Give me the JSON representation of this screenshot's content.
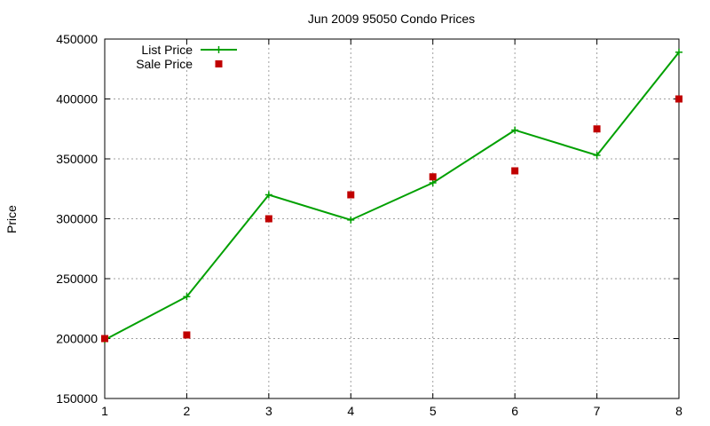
{
  "chart_data": {
    "type": "line",
    "title": "Jun 2009 95050 Condo Prices",
    "xlabel": "",
    "ylabel": "Price",
    "x": [
      1,
      2,
      3,
      4,
      5,
      6,
      7,
      8
    ],
    "xlim": [
      1,
      8
    ],
    "ylim": [
      150000,
      450000
    ],
    "xticks": [
      1,
      2,
      3,
      4,
      5,
      6,
      7,
      8
    ],
    "yticks": [
      150000,
      200000,
      250000,
      300000,
      350000,
      400000,
      450000
    ],
    "grid": true,
    "legend_position": "top-left",
    "series": [
      {
        "name": "List Price",
        "style": "line-with-plus-markers",
        "color": "#00a000",
        "values": [
          199000,
          235000,
          320000,
          299000,
          330000,
          374000,
          353000,
          439000
        ]
      },
      {
        "name": "Sale Price",
        "style": "square-markers",
        "color": "#c00000",
        "values": [
          200000,
          203000,
          300000,
          320000,
          335000,
          340000,
          375000,
          400000
        ]
      }
    ]
  }
}
